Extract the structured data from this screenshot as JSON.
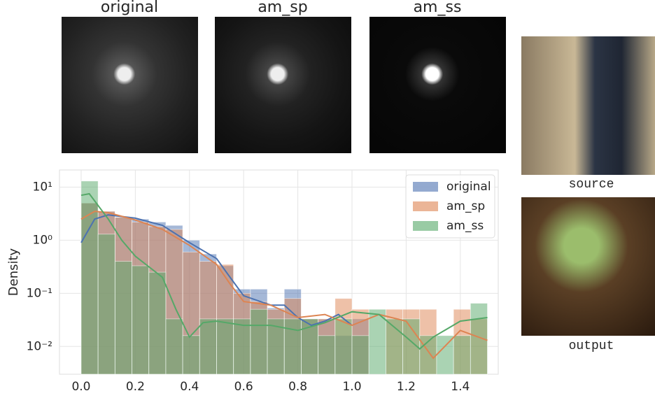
{
  "heatmap_titles": [
    "original",
    "am_sp",
    "am_ss"
  ],
  "photo_captions": [
    "source",
    "output"
  ],
  "chart_data": {
    "type": "histogram",
    "y_label": "Density",
    "yscale": "log",
    "grid": true,
    "legend": "upper right",
    "bins": [
      0,
      0.0625,
      0.125,
      0.1875,
      0.25,
      0.3125,
      0.375,
      0.4375,
      0.5,
      0.5625,
      0.625,
      0.6875,
      0.75,
      0.8125,
      0.875,
      0.9375,
      1.0,
      1.0625,
      1.125,
      1.1875,
      1.25,
      1.3125,
      1.375,
      1.4375,
      1.5
    ],
    "xlim": [
      -0.08,
      1.54
    ],
    "ylim": [
      0.003,
      21
    ],
    "xticks": [
      {
        "value": 0,
        "label": "0.0"
      },
      {
        "value": 0.2,
        "label": "0.2"
      },
      {
        "value": 0.4,
        "label": "0.4"
      },
      {
        "value": 0.6,
        "label": "0.6"
      },
      {
        "value": 0.8,
        "label": "0.8"
      },
      {
        "value": 1.0,
        "label": "1.0"
      },
      {
        "value": 1.2,
        "label": "1.2"
      },
      {
        "value": 1.4,
        "label": "1.4"
      }
    ],
    "yticks": [
      {
        "value": 10,
        "label": "10¹"
      },
      {
        "value": 1,
        "label": "10⁰"
      },
      {
        "value": 0.1,
        "label": "10⁻¹"
      },
      {
        "value": 0.01,
        "label": "10⁻²"
      }
    ],
    "series": [
      {
        "name": "original",
        "color": "#4c72b0",
        "values": [
          5,
          3.5,
          2.7,
          2.5,
          2.2,
          1.9,
          1.0,
          0.55,
          0.33,
          0.12,
          0.12,
          0.053,
          0.12,
          0.033,
          0.033,
          0.016,
          0.033,
          0,
          0,
          0,
          0,
          0,
          0,
          0
        ],
        "kde": {
          "x": [
            0,
            0.05,
            0.1,
            0.2,
            0.3,
            0.4,
            0.5,
            0.55,
            0.6,
            0.7,
            0.75,
            0.8,
            0.85,
            0.9,
            0.95,
            1.0
          ],
          "values": [
            0.9,
            2.5,
            3.0,
            2.6,
            1.9,
            0.9,
            0.45,
            0.2,
            0.09,
            0.06,
            0.06,
            0.035,
            0.025,
            0.03,
            0.04,
            0.025
          ]
        }
      },
      {
        "name": "am_sp",
        "color": "#dd8452",
        "values": [
          5,
          3.5,
          2.7,
          2.2,
          1.8,
          1.6,
          0.6,
          0.4,
          0.35,
          0.1,
          0.07,
          0.05,
          0.08,
          0.033,
          0.033,
          0.08,
          0.05,
          0,
          0.05,
          0.05,
          0.05,
          0,
          0.05,
          0.033
        ],
        "kde": {
          "x": [
            0,
            0.05,
            0.1,
            0.2,
            0.3,
            0.4,
            0.5,
            0.55,
            0.6,
            0.7,
            0.8,
            0.9,
            1.0,
            1.1,
            1.2,
            1.3,
            1.4,
            1.5
          ],
          "values": [
            2.5,
            3.5,
            3.3,
            2.4,
            1.6,
            0.8,
            0.35,
            0.15,
            0.07,
            0.06,
            0.035,
            0.04,
            0.025,
            0.04,
            0.03,
            0.006,
            0.02,
            0.013
          ]
        }
      },
      {
        "name": "am_ss",
        "color": "#55a868",
        "values": [
          13,
          1.3,
          0.4,
          0.33,
          0.25,
          0.033,
          0.016,
          0.033,
          0.033,
          0.033,
          0.05,
          0.033,
          0.033,
          0.033,
          0.016,
          0.033,
          0.016,
          0.05,
          0.033,
          0.033,
          0.016,
          0.016,
          0.016,
          0.065
        ],
        "kde": {
          "x": [
            0,
            0.03,
            0.1,
            0.15,
            0.2,
            0.3,
            0.35,
            0.4,
            0.45,
            0.5,
            0.6,
            0.7,
            0.8,
            0.9,
            1.0,
            1.1,
            1.2,
            1.25,
            1.3,
            1.4,
            1.5
          ],
          "values": [
            7,
            7.5,
            2.5,
            1.0,
            0.5,
            0.2,
            0.05,
            0.015,
            0.028,
            0.03,
            0.025,
            0.025,
            0.02,
            0.028,
            0.045,
            0.04,
            0.015,
            0.009,
            0.015,
            0.03,
            0.035
          ]
        }
      }
    ]
  }
}
